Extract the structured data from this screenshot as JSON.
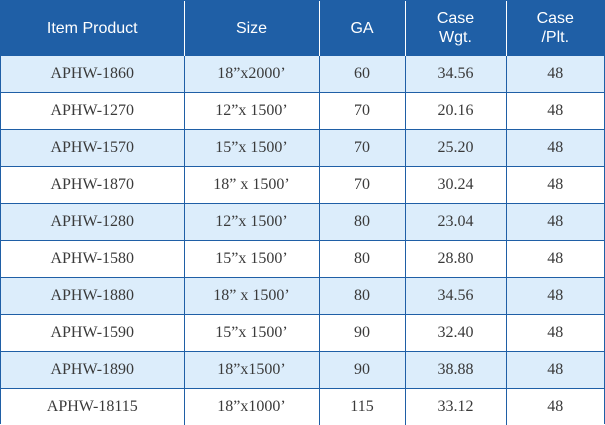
{
  "table": {
    "headers": [
      {
        "line1": "Item Product",
        "line2": ""
      },
      {
        "line1": "Size",
        "line2": ""
      },
      {
        "line1": "GA",
        "line2": ""
      },
      {
        "line1": "Case",
        "line2": "Wgt."
      },
      {
        "line1": "Case",
        "line2": "/Plt."
      }
    ],
    "rows": [
      {
        "item": "APHW-1860",
        "size": "18”x2000’",
        "ga": "60",
        "case_wgt": "34.56",
        "case_plt": "48"
      },
      {
        "item": "APHW-1270",
        "size": "12”x 1500’",
        "ga": "70",
        "case_wgt": "20.16",
        "case_plt": "48"
      },
      {
        "item": "APHW-1570",
        "size": "15”x 1500’",
        "ga": "70",
        "case_wgt": "25.20",
        "case_plt": "48"
      },
      {
        "item": "APHW-1870",
        "size": "18” x 1500’",
        "ga": "70",
        "case_wgt": "30.24",
        "case_plt": "48"
      },
      {
        "item": "APHW-1280",
        "size": "12”x 1500’",
        "ga": "80",
        "case_wgt": "23.04",
        "case_plt": "48"
      },
      {
        "item": "APHW-1580",
        "size": "15”x 1500’",
        "ga": "80",
        "case_wgt": "28.80",
        "case_plt": "48"
      },
      {
        "item": "APHW-1880",
        "size": "18” x 1500’",
        "ga": "80",
        "case_wgt": "34.56",
        "case_plt": "48"
      },
      {
        "item": "APHW-1590",
        "size": "15”x 1500’",
        "ga": "90",
        "case_wgt": "32.40",
        "case_plt": "48"
      },
      {
        "item": "APHW-1890",
        "size": "18”x1500’",
        "ga": "90",
        "case_wgt": "38.88",
        "case_plt": "48"
      },
      {
        "item": "APHW-18115",
        "size": "18”x1000’",
        "ga": "115",
        "case_wgt": "33.12",
        "case_plt": "48"
      }
    ]
  },
  "colors": {
    "header_bg": "#1f5fa6",
    "header_text": "#ffffff",
    "stripe_row": "#dcedfb",
    "plain_row": "#ffffff",
    "cell_text": "#3a3a3a"
  }
}
